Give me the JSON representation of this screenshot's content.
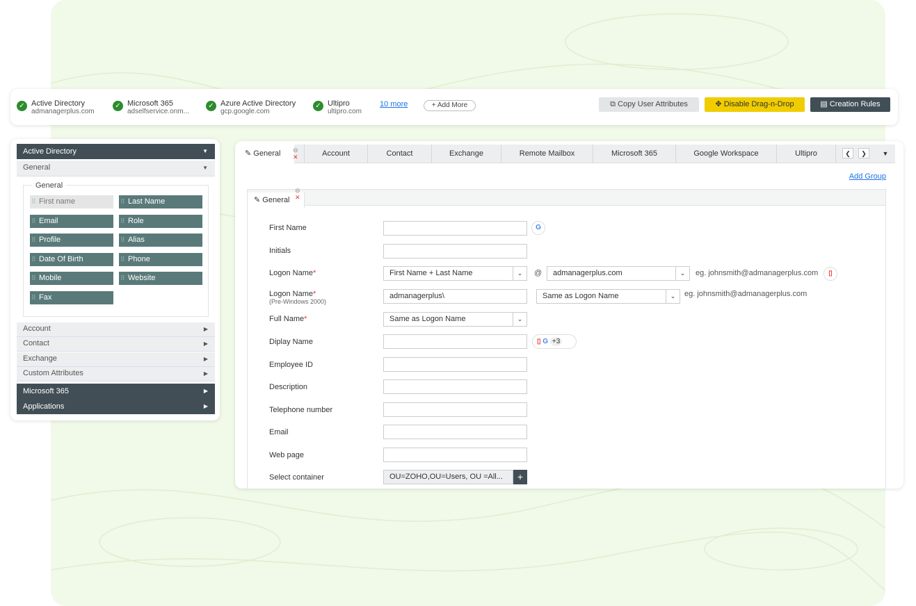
{
  "sources": [
    {
      "name": "Active Directory",
      "domain": "admanagerplus.com"
    },
    {
      "name": "Microsoft 365",
      "domain": "adselfservice.onm..."
    },
    {
      "name": "Azure Active Directory",
      "domain": "gcp.google.com"
    },
    {
      "name": "Ultipro",
      "domain": "ultipro.com"
    }
  ],
  "more_link": "10 more",
  "add_more": "+ Add More",
  "buttons": {
    "copy": "Copy User Attributes",
    "drag": "Disable Drag-n-Drop",
    "rules": "Creation Rules"
  },
  "colors": {
    "accent": "#f0cd00",
    "dark": "#414e56",
    "chip": "#5a7a7a",
    "success": "#2e8b2e"
  },
  "sidebar": {
    "top": "Active Directory",
    "general": "General",
    "fieldset": "General",
    "chips": [
      "First name",
      "Last Name",
      "Email",
      "Role",
      "Profile",
      "Alias",
      "Date Of Birth",
      "Phone",
      "Mobile",
      "Website",
      "Fax"
    ],
    "sections": [
      "Account",
      "Contact",
      "Exchange",
      "Custom Attributes"
    ],
    "bottom": [
      "Microsoft 365",
      "Applications"
    ]
  },
  "tabs": [
    "General",
    "Account",
    "Contact",
    "Exchange",
    "Remote Mailbox",
    "Microsoft 365",
    "Google Workspace",
    "Ultipro"
  ],
  "add_group": "Add Group",
  "group_title": "General",
  "form": {
    "first_name": "First Name",
    "initials": "Initials",
    "logon": "Logon Name",
    "logon_value": "First Name + Last Name",
    "at": "@",
    "domain": "admanagerplus.com",
    "eg": "eg. johnsmith@admanagerplus.com",
    "pre": "Logon Name",
    "pre_sub": "(Pre-Windows 2000)",
    "pre_value": "admanagerplus\\",
    "pre_sel": "Same as Logon Name",
    "full": "Full Name",
    "full_value": "Same as Logon Name",
    "display": "Diplay Name",
    "plus": "+3",
    "emp": "Employee ID",
    "desc": "Description",
    "tel": "Telephone number",
    "email": "Email",
    "web": "Web page",
    "container": "Select container",
    "container_value": "OU=ZOHO,OU=Users, OU =All..."
  }
}
